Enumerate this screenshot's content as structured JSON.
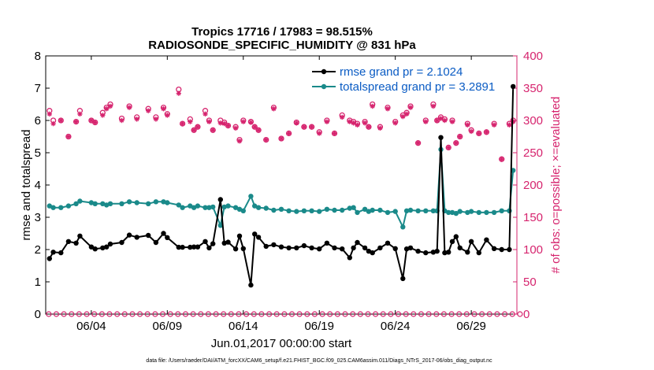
{
  "chart_data": {
    "type": "line",
    "title": "Tropics 17716 / 17983 = 98.515%",
    "subtitle": "RADIOSONDE_SPECIFIC_HUMIDITY @ 831 hPa",
    "xlabel": "Jun.01,2017 00:00:00 start",
    "ylabel": "rmse and totalspread",
    "ylabel_right": "# of obs: o=possible; ×=evaluated",
    "xlim": [
      0,
      31
    ],
    "ylim": [
      0,
      8
    ],
    "ylim_right": [
      0,
      400
    ],
    "x_tick_values": [
      3,
      8,
      13,
      18,
      23,
      28
    ],
    "x_tick_labels": [
      "06/04",
      "06/09",
      "06/14",
      "06/19",
      "06/24",
      "06/29"
    ],
    "y_ticks": [
      "0",
      "1",
      "2",
      "3",
      "4",
      "5",
      "6",
      "7",
      "8"
    ],
    "y_right_ticks": [
      "0",
      "50",
      "100",
      "150",
      "200",
      "250",
      "300",
      "350",
      "400"
    ],
    "colors": {
      "rmse": "#000000",
      "spread": "#1a8a8a",
      "obs": "#d6246e",
      "legend_text": "#0b5cc4",
      "right_axis": "#d6246e"
    },
    "legend": [
      "rmse grand pr = 2.1024",
      "totalspread grand pr = 3.2891"
    ],
    "footer": "data file: /Users/raeder/DAI/ATM_forcXX/CAM6_setup/f.e21.FHIST_BGC.f09_025.CAM6assim.011/Diags_NTrS_2017-06/obs_diag_output.nc",
    "series": [
      {
        "name": "rmse",
        "axis": "left",
        "x": [
          0.25,
          0.5,
          1.0,
          1.5,
          2.0,
          2.25,
          3.0,
          3.25,
          3.75,
          4.0,
          4.25,
          5.0,
          5.5,
          6.0,
          6.75,
          7.25,
          7.75,
          8.0,
          8.75,
          9.0,
          9.5,
          9.75,
          10.0,
          10.5,
          10.75,
          11.0,
          11.5,
          11.75,
          12.0,
          12.5,
          12.75,
          13.0,
          13.5,
          13.75,
          14.0,
          14.5,
          15.0,
          15.5,
          16.0,
          16.5,
          17.0,
          17.5,
          18.0,
          18.5,
          19.0,
          19.5,
          20.0,
          20.25,
          20.5,
          21.0,
          21.25,
          21.5,
          22.0,
          22.5,
          23.0,
          23.5,
          23.75,
          24.0,
          24.5,
          25.0,
          25.5,
          25.75,
          26.0,
          26.25,
          26.5,
          26.75,
          27.0,
          27.25,
          27.75,
          28.0,
          28.5,
          29.0,
          29.5,
          30.0,
          30.5,
          30.75
        ],
        "values": [
          1.72,
          1.92,
          1.9,
          2.25,
          2.2,
          2.42,
          2.08,
          2.02,
          2.05,
          2.08,
          2.17,
          2.22,
          2.45,
          2.38,
          2.44,
          2.22,
          2.5,
          2.37,
          2.07,
          2.07,
          2.07,
          2.08,
          2.08,
          2.25,
          2.05,
          2.18,
          3.55,
          2.2,
          2.23,
          2.02,
          2.42,
          2.03,
          0.9,
          2.48,
          2.38,
          2.1,
          2.15,
          2.08,
          2.05,
          2.05,
          2.12,
          2.05,
          2.02,
          2.2,
          2.05,
          2.02,
          1.75,
          2.05,
          2.22,
          2.05,
          1.95,
          1.9,
          2.05,
          2.2,
          2.03,
          1.1,
          2.02,
          2.05,
          1.95,
          1.9,
          1.92,
          1.95,
          5.47,
          1.9,
          1.92,
          2.25,
          2.4,
          2.05,
          1.92,
          2.25,
          1.9,
          2.3,
          2.03,
          2.0,
          2.0,
          7.05
        ]
      },
      {
        "name": "totalspread",
        "axis": "left",
        "x": [
          0.25,
          0.5,
          1.0,
          1.5,
          2.0,
          2.25,
          3.0,
          3.25,
          3.75,
          4.0,
          4.25,
          5.0,
          5.5,
          6.0,
          6.75,
          7.25,
          7.75,
          8.0,
          8.75,
          9.0,
          9.5,
          9.75,
          10.0,
          10.5,
          10.75,
          11.0,
          11.5,
          11.75,
          12.0,
          12.5,
          12.75,
          13.0,
          13.5,
          13.75,
          14.0,
          14.5,
          15.0,
          15.5,
          16.0,
          16.5,
          17.0,
          17.5,
          18.0,
          18.5,
          19.0,
          19.5,
          20.0,
          20.25,
          20.5,
          21.0,
          21.25,
          21.5,
          22.0,
          22.5,
          23.0,
          23.5,
          23.75,
          24.0,
          24.5,
          25.0,
          25.5,
          25.75,
          26.0,
          26.25,
          26.5,
          26.75,
          27.0,
          27.25,
          27.75,
          28.0,
          28.5,
          29.0,
          29.5,
          30.0,
          30.5,
          30.75
        ],
        "values": [
          3.35,
          3.3,
          3.3,
          3.35,
          3.42,
          3.5,
          3.45,
          3.42,
          3.42,
          3.38,
          3.42,
          3.42,
          3.48,
          3.45,
          3.42,
          3.48,
          3.48,
          3.45,
          3.38,
          3.3,
          3.35,
          3.3,
          3.35,
          3.3,
          3.3,
          3.32,
          2.75,
          3.32,
          3.35,
          3.3,
          3.25,
          3.2,
          3.65,
          3.35,
          3.3,
          3.28,
          3.22,
          3.25,
          3.2,
          3.18,
          3.2,
          3.2,
          3.18,
          3.25,
          3.22,
          3.22,
          3.28,
          3.3,
          3.15,
          3.25,
          3.18,
          3.22,
          3.22,
          3.15,
          3.18,
          2.7,
          3.2,
          3.22,
          3.2,
          3.2,
          3.2,
          3.2,
          5.1,
          3.2,
          3.15,
          3.15,
          3.12,
          3.18,
          3.15,
          3.18,
          3.15,
          3.15,
          3.15,
          3.2,
          3.2,
          4.45
        ]
      },
      {
        "name": "obs possible",
        "axis": "right",
        "x": [
          0.25,
          0.5,
          1.0,
          1.5,
          2.0,
          2.25,
          3.0,
          3.25,
          3.75,
          4.0,
          4.25,
          5.0,
          5.5,
          6.0,
          6.75,
          7.25,
          7.75,
          8.0,
          8.75,
          9.0,
          9.5,
          9.75,
          10.0,
          10.5,
          10.75,
          11.0,
          11.5,
          11.75,
          12.0,
          12.5,
          12.75,
          13.0,
          13.5,
          13.75,
          14.0,
          14.5,
          15.0,
          15.5,
          16.0,
          16.5,
          17.0,
          17.5,
          18.0,
          18.5,
          19.0,
          19.5,
          20.0,
          20.25,
          20.5,
          21.0,
          21.25,
          21.5,
          22.0,
          22.5,
          23.0,
          23.5,
          23.75,
          24.0,
          24.5,
          25.0,
          25.5,
          25.75,
          26.0,
          26.25,
          26.5,
          26.75,
          27.0,
          27.25,
          27.75,
          28.0,
          28.5,
          29.0,
          29.5,
          30.0,
          30.5,
          30.75
        ],
        "values": [
          315,
          300,
          300,
          275,
          298,
          315,
          300,
          297,
          312,
          320,
          325,
          303,
          322,
          305,
          318,
          305,
          320,
          310,
          348,
          295,
          302,
          285,
          290,
          315,
          300,
          285,
          300,
          297,
          292,
          290,
          270,
          300,
          298,
          290,
          285,
          270,
          320,
          272,
          280,
          297,
          290,
          290,
          282,
          300,
          280,
          308,
          300,
          298,
          295,
          298,
          290,
          325,
          290,
          320,
          298,
          308,
          312,
          322,
          265,
          300,
          325,
          300,
          305,
          302,
          258,
          300,
          265,
          275,
          295,
          285,
          280,
          282,
          295,
          240,
          295,
          300
        ]
      },
      {
        "name": "obs evaluated",
        "axis": "right",
        "x": [
          0.25,
          0.5,
          1.0,
          1.5,
          2.0,
          2.25,
          3.0,
          3.25,
          3.75,
          4.0,
          4.25,
          5.0,
          5.5,
          6.0,
          6.75,
          7.25,
          7.75,
          8.0,
          8.75,
          9.0,
          9.5,
          9.75,
          10.0,
          10.5,
          10.75,
          11.0,
          11.5,
          11.75,
          12.0,
          12.5,
          12.75,
          13.0,
          13.5,
          13.75,
          14.0,
          14.5,
          15.0,
          15.5,
          16.0,
          16.5,
          17.0,
          17.5,
          18.0,
          18.5,
          19.0,
          19.5,
          20.0,
          20.25,
          20.5,
          21.0,
          21.25,
          21.5,
          22.0,
          22.5,
          23.0,
          23.5,
          23.75,
          24.0,
          24.5,
          25.0,
          25.5,
          25.75,
          26.0,
          26.25,
          26.5,
          26.75,
          27.0,
          27.25,
          27.75,
          28.0,
          28.5,
          29.0,
          29.5,
          30.0,
          30.5,
          30.75
        ],
        "values": [
          310,
          295,
          300,
          275,
          298,
          310,
          300,
          297,
          308,
          318,
          322,
          300,
          320,
          302,
          315,
          302,
          318,
          308,
          342,
          295,
          298,
          285,
          290,
          310,
          298,
          285,
          296,
          295,
          292,
          288,
          268,
          298,
          297,
          290,
          285,
          270,
          318,
          272,
          280,
          296,
          290,
          290,
          280,
          298,
          280,
          305,
          298,
          296,
          293,
          296,
          290,
          322,
          288,
          318,
          296,
          306,
          310,
          320,
          265,
          298,
          322,
          300,
          303,
          300,
          258,
          298,
          265,
          275,
          293,
          283,
          280,
          282,
          293,
          240,
          293,
          298
        ]
      }
    ]
  }
}
